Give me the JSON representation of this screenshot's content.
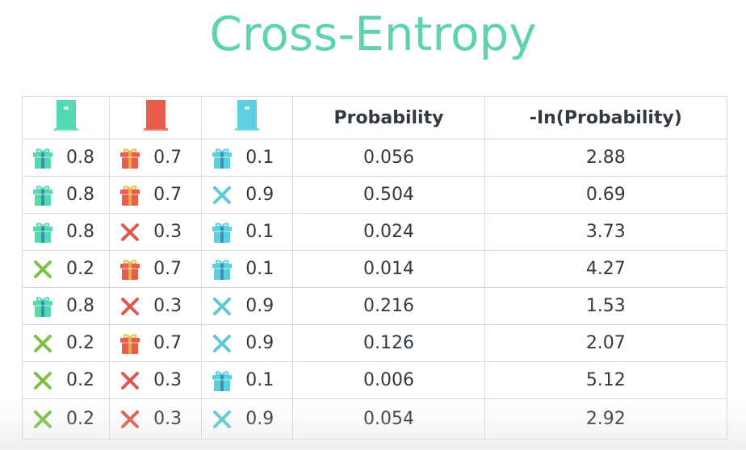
{
  "title": "Cross-Entropy",
  "colors": {
    "title": "#5fd3b1",
    "door1": "#55d8b4",
    "door2": "#e85d4b",
    "door3": "#5ccfe0",
    "gift1": "#55d8b4",
    "gift2": "#e85d4b",
    "gift3": "#5ccfe0",
    "cross_green": "#7ac142",
    "cross_red": "#e0584a",
    "cross_blue": "#5bc9d9"
  },
  "header": {
    "door1_icon": "green-door-icon",
    "door2_icon": "red-door-icon",
    "door3_icon": "blue-door-icon",
    "probability": "Probability",
    "neg_log": "-In(Probability)"
  },
  "rows": [
    {
      "d1": {
        "icon": "gift",
        "val": "0.8"
      },
      "d2": {
        "icon": "gift",
        "val": "0.7"
      },
      "d3": {
        "icon": "gift",
        "val": "0.1"
      },
      "prob": "0.056",
      "log": "2.88"
    },
    {
      "d1": {
        "icon": "gift",
        "val": "0.8"
      },
      "d2": {
        "icon": "gift",
        "val": "0.7"
      },
      "d3": {
        "icon": "cross",
        "val": "0.9"
      },
      "prob": "0.504",
      "log": "0.69"
    },
    {
      "d1": {
        "icon": "gift",
        "val": "0.8"
      },
      "d2": {
        "icon": "cross",
        "val": "0.3"
      },
      "d3": {
        "icon": "gift",
        "val": "0.1"
      },
      "prob": "0.024",
      "log": "3.73"
    },
    {
      "d1": {
        "icon": "cross",
        "val": "0.2"
      },
      "d2": {
        "icon": "gift",
        "val": "0.7"
      },
      "d3": {
        "icon": "gift",
        "val": "0.1"
      },
      "prob": "0.014",
      "log": "4.27"
    },
    {
      "d1": {
        "icon": "gift",
        "val": "0.8"
      },
      "d2": {
        "icon": "cross",
        "val": "0.3"
      },
      "d3": {
        "icon": "cross",
        "val": "0.9"
      },
      "prob": "0.216",
      "log": "1.53"
    },
    {
      "d1": {
        "icon": "cross",
        "val": "0.2"
      },
      "d2": {
        "icon": "gift",
        "val": "0.7"
      },
      "d3": {
        "icon": "cross",
        "val": "0.9"
      },
      "prob": "0.126",
      "log": "2.07"
    },
    {
      "d1": {
        "icon": "cross",
        "val": "0.2"
      },
      "d2": {
        "icon": "cross",
        "val": "0.3"
      },
      "d3": {
        "icon": "gift",
        "val": "0.1"
      },
      "prob": "0.006",
      "log": "5.12"
    },
    {
      "d1": {
        "icon": "cross",
        "val": "0.2"
      },
      "d2": {
        "icon": "cross",
        "val": "0.3"
      },
      "d3": {
        "icon": "cross",
        "val": "0.9"
      },
      "prob": "0.054",
      "log": "2.92"
    }
  ]
}
